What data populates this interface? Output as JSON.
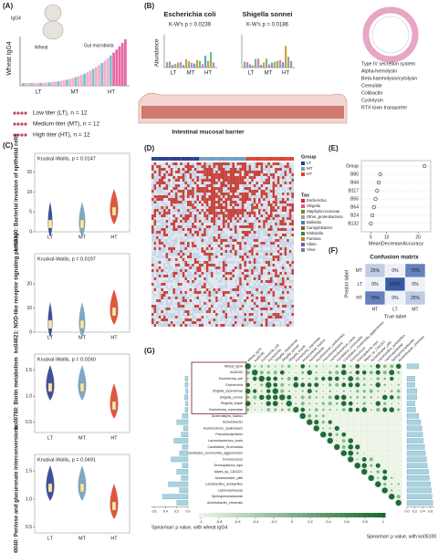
{
  "panels": {
    "A": {
      "label": "(A)",
      "y_label": "Wheat IgG4",
      "categories": [
        "LT",
        "MT",
        "HT"
      ],
      "annotations": [
        "IgG4",
        "Wheat",
        "Gut microbiota"
      ],
      "groups": [
        "Low titer (LT), n = 12",
        "Medium titer (MT), n = 12",
        "High titer (HT), n = 12"
      ]
    },
    "B": {
      "label": "(B)",
      "species": [
        {
          "name": "Escherichia coli",
          "pvalue": "K-W's p = 0.0239"
        },
        {
          "name": "Shigella sonnei",
          "pvalue": "K-W's p = 0.0186"
        }
      ],
      "y_label": "Abundance",
      "categories": [
        "LT",
        "MT",
        "HT"
      ],
      "factors": [
        "Type IV secretion system",
        "Alpha-hemolysin",
        "Beta-haemolysin/cytolysin",
        "Cereulide",
        "Colibactin",
        "Cyclolysin",
        "RTX toxin transporter"
      ],
      "barrier": "Intestinal mucosal barrier"
    },
    "C": {
      "label": "(C)",
      "categories": [
        "LT",
        "MT",
        "HT"
      ],
      "plots": [
        {
          "y_label": "ko05100: Bacterial invasion of epithelial cells",
          "pvalue": "Kruskal-Wallis, p = 0.0147",
          "ylim": [
            0,
            17
          ],
          "yticks": [
            0,
            5,
            10,
            15
          ],
          "highlight": true
        },
        {
          "y_label": "ko04621: NOD-like receptor signaling pathway",
          "pvalue": "Kruskal-Wallis, p = 0.0197",
          "ylim": [
            0,
            28
          ],
          "yticks": [
            0,
            10,
            20
          ],
          "highlight": true
        },
        {
          "y_label": "ko00780: Biotin metabolism",
          "pvalue": "Kruskal-Wallis, p = 0.0240",
          "ylim": [
            0.3,
            1.6
          ],
          "yticks": [
            0.5,
            {
              "value": 1,
              "label": "1.0"
            },
            1.5
          ],
          "highlight": false
        },
        {
          "y_label": "ko00040: Pentose and glucuronate interconversions",
          "pvalue": "Kruskal-Wallis, p = 0.0491",
          "ylim": [
            0.4,
            1.6
          ],
          "yticks": [
            0.5,
            {
              "value": 1,
              "label": "1.0"
            },
            1.5
          ],
          "highlight": false
        }
      ]
    },
    "D": {
      "label": "(D)",
      "group_title": "Group",
      "groups": [
        "LT",
        "MT",
        "HT"
      ],
      "tax_title": "Tax",
      "tax": [
        "Escherichia",
        "Shigella",
        "Staphylococcaceae",
        "Other_proteobacteria",
        "Bulleidia",
        "Campylobacter",
        "Klebsiella",
        "Pantoea",
        "Vibrio",
        "Virus"
      ]
    },
    "E": {
      "label": "(E)",
      "x_label": "MeanDecreaseAccuracy",
      "features": [
        "Group",
        "B80",
        "B44",
        "B117",
        "B56",
        "B64",
        "B24",
        "B132"
      ],
      "values": [
        22,
        8,
        7.5,
        7,
        6.5,
        6,
        5.5,
        5
      ],
      "xlim": [
        2,
        24
      ],
      "xticks": [
        5,
        10,
        20
      ]
    },
    "F": {
      "label": "(F)",
      "title": "Confusion matrix",
      "x_label": "True label",
      "y_label": "Predict label",
      "rows": [
        "MT",
        "LT",
        "HT"
      ],
      "cols": [
        "HT",
        "LT",
        "MT"
      ],
      "values": [
        [
          25,
          0,
          75
        ],
        [
          0,
          100,
          0
        ],
        [
          75,
          0,
          25
        ]
      ],
      "value_labels": [
        [
          "25%",
          "0%",
          "75%"
        ],
        [
          "0%",
          "100%",
          "0%"
        ],
        [
          "75%",
          "0%",
          "25%"
        ]
      ]
    },
    "G": {
      "label": "(G)",
      "rows": [
        "Wheat_IgG4",
        "ko05100",
        "Escherichia_coli",
        "Escherichia",
        "Shigella_dysenteriae",
        "Shigella_sonnei",
        "Shigella_boydii",
        "Escherichia_marmotae",
        "Anaerostipes_hadrus",
        "Acinetobacter",
        "Azorhizobium_caulinodans",
        "Pseudobutyrivibrio",
        "Lachnobacterium_bovis",
        "Candidatus_Gromovidia",
        "Candidatus_Gromovidia_agglomerans",
        "Eremococcus",
        "Eremoplasma_equi",
        "Alipes_sp_CAG221",
        "Acinetobacter_pittii",
        "Lactobacillus_acidophilus",
        "Lachnospiraceae",
        "Sphingomonadaceae",
        "Acinetobacter_chinensis"
      ],
      "left_values": [
        0,
        0,
        0.05,
        0.05,
        0.04,
        0.06,
        0.04,
        0.05,
        0.1,
        0.2,
        0.08,
        0.12,
        0.25,
        0.1,
        0.15,
        0.3,
        0.1,
        0.2,
        0.12,
        0.35,
        0.15,
        0.45,
        0.2
      ],
      "left_xlim": [
        0,
        0.65
      ],
      "left_xticks": [
        {
          "value": 0,
          "label": "0.0"
        },
        0.2,
        0.4,
        0.6
      ],
      "left_label": "Spearman' ρ value, with wheat IgG4",
      "right_values": [
        0.3,
        0,
        0.2,
        0.2,
        0.25,
        0.25,
        0.2,
        0.22,
        0.3,
        0.35,
        0.38,
        0.4,
        0.42,
        0.45,
        0.47,
        0.5,
        0.52,
        0.55,
        0.57,
        0.6,
        0.62,
        0.64,
        0.66
      ],
      "right_xlim": [
        0,
        0.7
      ],
      "right_xticks": [
        {
          "value": 0,
          "label": "0.0"
        },
        0.2,
        0.4,
        0.6
      ],
      "right_label": "Spearman' ρ value, with ko05100",
      "colorbar_ticks": [
        -1,
        -0.8,
        -0.6,
        -0.4,
        -0.2,
        0,
        0.2,
        0.4,
        0.6,
        0.8,
        1
      ]
    }
  }
}
